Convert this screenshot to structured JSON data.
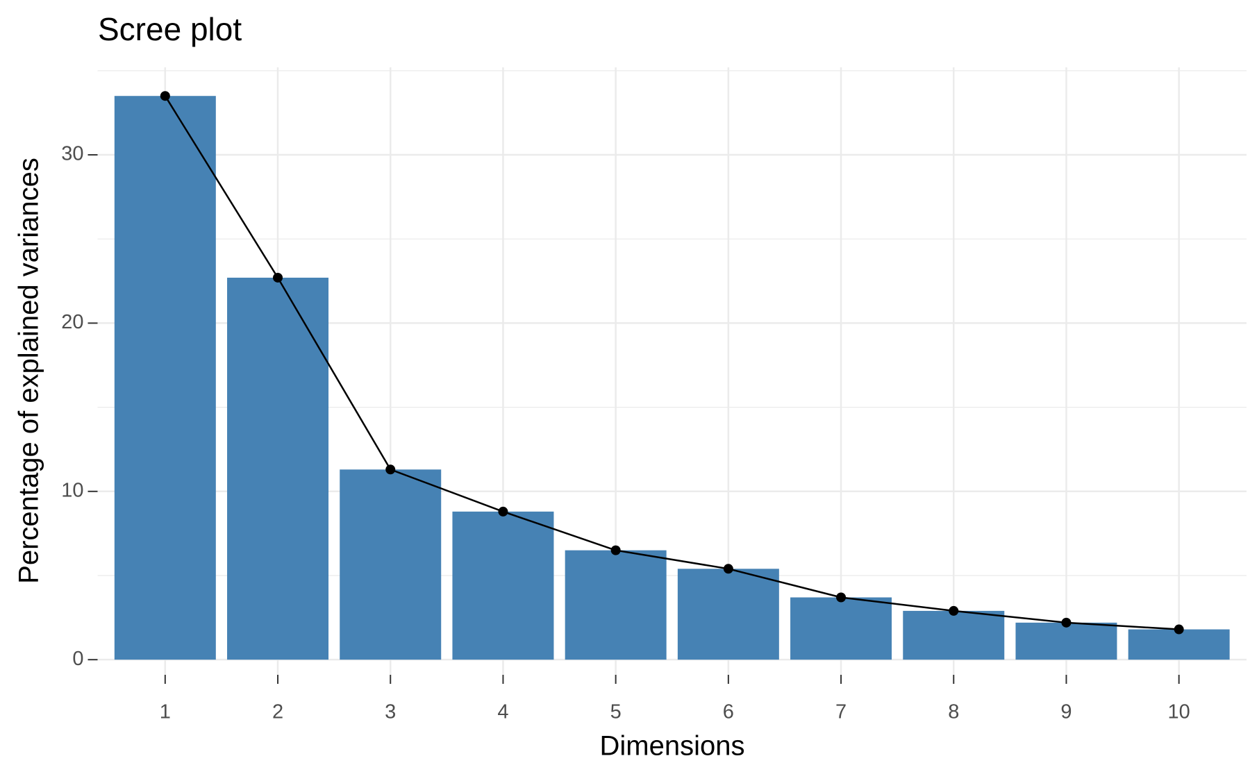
{
  "chart_data": {
    "type": "bar-line",
    "title": "Scree plot",
    "x_label": "Dimensions",
    "y_label": "Percentage of explained variances",
    "x": [
      1,
      2,
      3,
      4,
      5,
      6,
      7,
      8,
      9,
      10
    ],
    "values": [
      33.5,
      22.7,
      11.3,
      8.8,
      6.5,
      5.4,
      3.7,
      2.9,
      2.2,
      1.8
    ],
    "color": "#4682b4",
    "line_color": "#000000",
    "xlim": [
      0.4,
      10.6
    ],
    "xticks": [
      1,
      2,
      3,
      4,
      5,
      6,
      7,
      8,
      9,
      10
    ],
    "ylim": [
      -0.9,
      35.2
    ],
    "yticks": [
      0,
      10,
      20,
      30
    ],
    "y_minor_ticks": [
      5,
      15,
      25,
      35
    ],
    "grid": true
  }
}
